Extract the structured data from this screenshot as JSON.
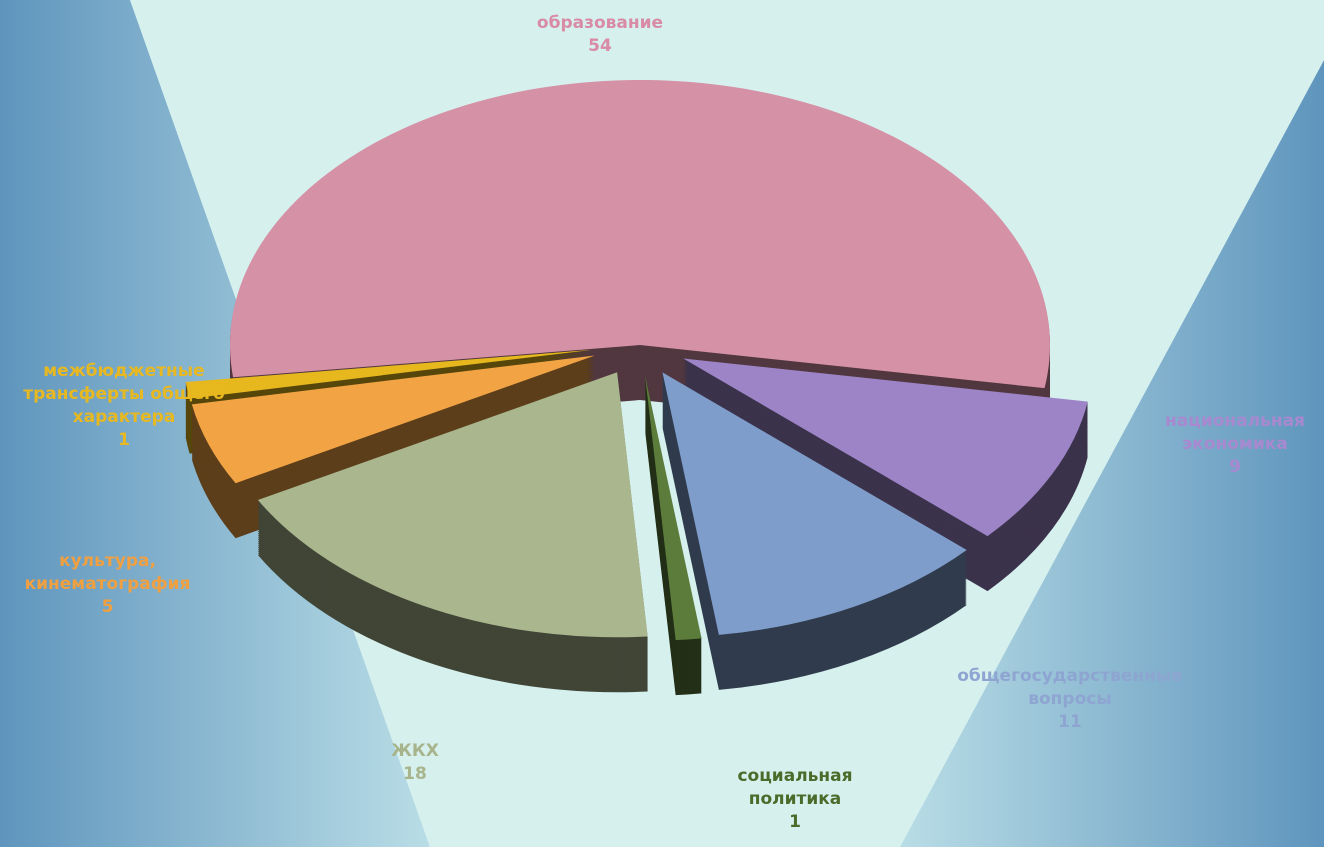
{
  "chart_data": {
    "type": "pie",
    "categories": [
      "образование",
      "национальная экономика",
      "общегосударственные вопросы",
      "социальная политика",
      "ЖКХ",
      "культура, кинематография",
      "межбюджетные трансферты общего характера"
    ],
    "values": [
      54,
      9,
      11,
      1,
      18,
      5,
      1
    ],
    "colors": [
      "#d591a6",
      "#9c84c6",
      "#7f9dca",
      "#5c7c3c",
      "#a9b68e",
      "#f2a445",
      "#e6b81e"
    ],
    "label_colors": [
      "#d98aa5",
      "#a889d0",
      "#8ea5d2",
      "#4a6b2a",
      "#a8b48c",
      "#f0a040",
      "#e8b820"
    ]
  }
}
